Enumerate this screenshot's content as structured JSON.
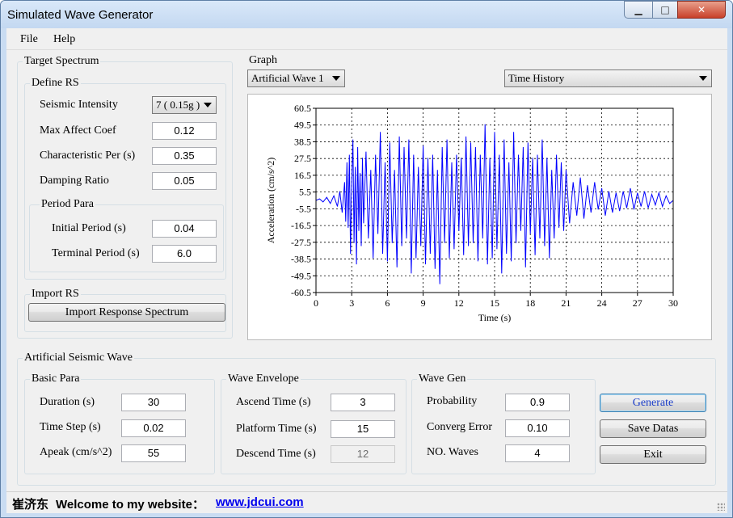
{
  "window": {
    "title": "Simulated Wave Generator",
    "min_icon": "▁",
    "max_icon": "□",
    "close_icon": "✕"
  },
  "menu": {
    "file": "File",
    "help": "Help"
  },
  "target_spectrum": {
    "title": "Target Spectrum",
    "define_rs": {
      "title": "Define RS",
      "seismic_intensity_label": "Seismic Intensity",
      "seismic_intensity_value": "7 ( 0.15g )",
      "max_affect_coef_label": "Max Affect Coef",
      "max_affect_coef_value": "0.12",
      "characteristic_per_label": "Characteristic Per (s)",
      "characteristic_per_value": "0.35",
      "damping_ratio_label": "Damping Ratio",
      "damping_ratio_value": "0.05"
    },
    "period_para": {
      "title": "Period Para",
      "initial_label": "Initial Period (s)",
      "initial_value": "0.04",
      "terminal_label": "Terminal Period (s)",
      "terminal_value": "6.0"
    },
    "import_rs": {
      "title": "Import RS",
      "button": "Import Response Spectrum"
    }
  },
  "graph": {
    "title": "Graph",
    "wave_select": "Artificial Wave 1",
    "view_select": "Time History"
  },
  "chart_data": {
    "type": "line",
    "xlabel": "Time (s)",
    "ylabel": "Acceleration (cm/s^2)",
    "xlim": [
      0,
      30
    ],
    "ylim": [
      -60.5,
      60.5
    ],
    "xticks": [
      0,
      3,
      6,
      9,
      12,
      15,
      18,
      21,
      24,
      27,
      30
    ],
    "yticks": [
      60.5,
      49.5,
      38.5,
      27.5,
      16.5,
      5.5,
      -5.5,
      -16.5,
      -27.5,
      -38.5,
      -49.5,
      -60.5
    ],
    "grid": true,
    "series": [
      {
        "color": "#0000ff",
        "x": [
          0.0,
          0.3,
          0.6,
          0.9,
          1.2,
          1.5,
          1.8,
          2.0,
          2.2,
          2.4,
          2.5,
          2.6,
          2.7,
          2.8,
          2.9,
          3.0,
          3.1,
          3.2,
          3.3,
          3.4,
          3.5,
          3.6,
          3.7,
          3.8,
          3.9,
          4.0,
          4.2,
          4.4,
          4.6,
          4.8,
          5.0,
          5.2,
          5.4,
          5.6,
          5.8,
          6.0,
          6.2,
          6.4,
          6.6,
          6.8,
          7.0,
          7.2,
          7.4,
          7.6,
          7.8,
          8.0,
          8.2,
          8.4,
          8.6,
          8.8,
          9.0,
          9.2,
          9.4,
          9.6,
          9.8,
          10.0,
          10.2,
          10.4,
          10.6,
          10.8,
          11.0,
          11.2,
          11.4,
          11.6,
          11.8,
          12.0,
          12.2,
          12.4,
          12.6,
          12.8,
          13.0,
          13.2,
          13.4,
          13.6,
          13.8,
          14.0,
          14.2,
          14.4,
          14.6,
          14.8,
          15.0,
          15.2,
          15.4,
          15.6,
          15.8,
          16.0,
          16.2,
          16.4,
          16.6,
          16.8,
          17.0,
          17.2,
          17.4,
          17.6,
          17.8,
          18.0,
          18.2,
          18.4,
          18.6,
          18.8,
          19.0,
          19.2,
          19.4,
          19.6,
          19.8,
          20.0,
          20.2,
          20.4,
          20.6,
          20.8,
          21.0,
          21.3,
          21.6,
          21.9,
          22.2,
          22.5,
          22.8,
          23.1,
          23.4,
          23.7,
          24.0,
          24.3,
          24.6,
          24.9,
          25.2,
          25.5,
          25.8,
          26.1,
          26.4,
          26.7,
          27.0,
          27.3,
          27.6,
          27.9,
          28.2,
          28.5,
          28.8,
          29.1,
          29.4,
          29.7,
          30.0
        ],
        "y": [
          0,
          1,
          -1,
          2,
          -2,
          3,
          -4,
          6,
          -8,
          12,
          -14,
          25,
          -18,
          30,
          -35,
          12,
          40,
          -28,
          22,
          -42,
          35,
          -20,
          18,
          -30,
          28,
          -15,
          32,
          -25,
          20,
          -38,
          30,
          -22,
          45,
          -35,
          25,
          -40,
          38,
          -28,
          20,
          -44,
          42,
          -30,
          35,
          -25,
          40,
          -48,
          30,
          -38,
          22,
          -30,
          36,
          -42,
          28,
          -35,
          30,
          -45,
          20,
          -55,
          35,
          -28,
          40,
          -38,
          25,
          -32,
          30,
          -20,
          28,
          -36,
          42,
          -30,
          38,
          -28,
          35,
          -40,
          30,
          -25,
          50,
          -42,
          28,
          -38,
          45,
          -32,
          30,
          -48,
          40,
          -35,
          25,
          -40,
          45,
          -28,
          30,
          -20,
          35,
          -44,
          38,
          -22,
          28,
          -36,
          30,
          -25,
          40,
          -30,
          28,
          -38,
          20,
          -25,
          30,
          -18,
          25,
          -20,
          20,
          -15,
          12,
          -10,
          15,
          -12,
          10,
          -8,
          12,
          -6,
          8,
          -10,
          6,
          -8,
          5,
          -7,
          6,
          -5,
          8,
          -6,
          5,
          -4,
          6,
          -5,
          4,
          -3,
          5,
          -4,
          3,
          -2,
          0
        ]
      }
    ]
  },
  "artificial_wave": {
    "title": "Artificial Seismic Wave",
    "basic_para": {
      "title": "Basic Para",
      "duration_label": "Duration (s)",
      "duration_value": "30",
      "timestep_label": "Time Step (s)",
      "timestep_value": "0.02",
      "apeak_label": "Apeak (cm/s^2)",
      "apeak_value": "55"
    },
    "wave_envelope": {
      "title": "Wave Envelope",
      "ascend_label": "Ascend Time (s)",
      "ascend_value": "3",
      "platform_label": "Platform Time (s)",
      "platform_value": "15",
      "descend_label": "Descend Time (s)",
      "descend_value": "12"
    },
    "wave_gen": {
      "title": "Wave Gen",
      "probability_label": "Probability",
      "probability_value": "0.9",
      "converg_label": "Converg Error",
      "converg_value": "0.10",
      "nowaves_label": "NO. Waves",
      "nowaves_value": "4"
    },
    "buttons": {
      "generate": "Generate",
      "save": "Save Datas",
      "exit": "Exit"
    }
  },
  "status": {
    "name": "崔济东",
    "welcome": "Welcome to my website：",
    "link": "www.jdcui.com"
  }
}
